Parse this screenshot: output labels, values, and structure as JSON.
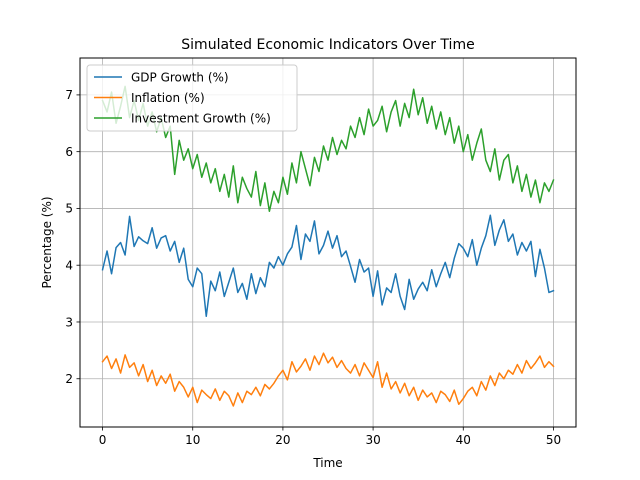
{
  "chart_data": {
    "type": "line",
    "title": "Simulated Economic Indicators Over Time",
    "xlabel": "Time",
    "ylabel": "Percentage (%)",
    "xlim": [
      -2.5,
      52.5
    ],
    "ylim": [
      1.15,
      7.65
    ],
    "xticks": [
      0,
      10,
      20,
      30,
      40,
      50
    ],
    "yticks": [
      2,
      3,
      4,
      5,
      6,
      7
    ],
    "grid": true,
    "legend_position": "top-left",
    "series": [
      {
        "name": "GDP Growth (%)",
        "color": "#1f77b4",
        "x": [
          0,
          0.5,
          1,
          1.5,
          2,
          2.5,
          3,
          3.5,
          4,
          4.5,
          5,
          5.5,
          6,
          6.5,
          7,
          7.5,
          8,
          8.5,
          9,
          9.5,
          10,
          10.5,
          11,
          11.5,
          12,
          12.5,
          13,
          13.5,
          14,
          14.5,
          15,
          15.5,
          16,
          16.5,
          17,
          17.5,
          18,
          18.5,
          19,
          19.5,
          20,
          20.5,
          21,
          21.5,
          22,
          22.5,
          23,
          23.5,
          24,
          24.5,
          25,
          25.5,
          26,
          26.5,
          27,
          27.5,
          28,
          28.5,
          29,
          29.5,
          30,
          30.5,
          31,
          31.5,
          32,
          32.5,
          33,
          33.5,
          34,
          34.5,
          35,
          35.5,
          36,
          36.5,
          37,
          37.5,
          38,
          38.5,
          39,
          39.5,
          40,
          40.5,
          41,
          41.5,
          42,
          42.5,
          43,
          43.5,
          44,
          44.5,
          45,
          45.5,
          46,
          46.5,
          47,
          47.5,
          48,
          48.5,
          49,
          49.5,
          50
        ],
        "values": [
          3.92,
          4.25,
          3.85,
          4.31,
          4.4,
          4.18,
          4.86,
          4.33,
          4.5,
          4.43,
          4.38,
          4.66,
          4.3,
          4.48,
          4.52,
          4.25,
          4.42,
          4.05,
          4.3,
          3.75,
          3.62,
          3.95,
          3.85,
          3.1,
          3.72,
          3.55,
          3.88,
          3.45,
          3.7,
          3.95,
          3.52,
          3.68,
          3.4,
          3.85,
          3.5,
          3.78,
          3.62,
          4.05,
          3.95,
          4.15,
          4.0,
          4.2,
          4.32,
          4.7,
          4.1,
          4.55,
          4.42,
          4.78,
          4.2,
          4.35,
          4.6,
          4.3,
          4.52,
          4.15,
          4.25,
          3.98,
          3.7,
          4.1,
          3.88,
          3.95,
          3.45,
          3.9,
          3.3,
          3.6,
          3.52,
          3.85,
          3.45,
          3.22,
          3.75,
          3.4,
          3.58,
          3.7,
          3.55,
          3.92,
          3.62,
          3.85,
          4.05,
          3.78,
          4.12,
          4.38,
          4.3,
          4.15,
          4.45,
          4.0,
          4.3,
          4.52,
          4.88,
          4.35,
          4.62,
          4.8,
          4.42,
          4.55,
          4.18,
          4.4,
          4.25,
          4.42,
          3.8,
          4.28,
          3.95,
          3.52,
          3.55
        ]
      },
      {
        "name": "Inflation (%)",
        "color": "#ff7f0e",
        "x": [
          0,
          0.5,
          1,
          1.5,
          2,
          2.5,
          3,
          3.5,
          4,
          4.5,
          5,
          5.5,
          6,
          6.5,
          7,
          7.5,
          8,
          8.5,
          9,
          9.5,
          10,
          10.5,
          11,
          11.5,
          12,
          12.5,
          13,
          13.5,
          14,
          14.5,
          15,
          15.5,
          16,
          16.5,
          17,
          17.5,
          18,
          18.5,
          19,
          19.5,
          20,
          20.5,
          21,
          21.5,
          22,
          22.5,
          23,
          23.5,
          24,
          24.5,
          25,
          25.5,
          26,
          26.5,
          27,
          27.5,
          28,
          28.5,
          29,
          29.5,
          30,
          30.5,
          31,
          31.5,
          32,
          32.5,
          33,
          33.5,
          34,
          34.5,
          35,
          35.5,
          36,
          36.5,
          37,
          37.5,
          38,
          38.5,
          39,
          39.5,
          40,
          40.5,
          41,
          41.5,
          42,
          42.5,
          43,
          43.5,
          44,
          44.5,
          45,
          45.5,
          46,
          46.5,
          47,
          47.5,
          48,
          48.5,
          49,
          49.5,
          50
        ],
        "values": [
          2.3,
          2.4,
          2.18,
          2.35,
          2.1,
          2.42,
          2.2,
          2.28,
          2.05,
          2.25,
          1.95,
          2.15,
          1.88,
          2.05,
          1.92,
          2.08,
          1.78,
          1.95,
          1.85,
          1.68,
          1.85,
          1.58,
          1.8,
          1.72,
          1.65,
          1.82,
          1.62,
          1.78,
          1.7,
          1.52,
          1.75,
          1.58,
          1.78,
          1.72,
          1.85,
          1.7,
          1.9,
          1.82,
          1.92,
          2.05,
          2.15,
          1.98,
          2.3,
          2.12,
          2.22,
          2.35,
          2.15,
          2.4,
          2.25,
          2.45,
          2.28,
          2.38,
          2.2,
          2.32,
          2.18,
          2.1,
          2.25,
          2.05,
          2.28,
          2.15,
          2.02,
          2.3,
          1.85,
          2.1,
          1.82,
          1.95,
          1.75,
          1.92,
          1.7,
          1.85,
          1.62,
          1.8,
          1.68,
          1.75,
          1.58,
          1.78,
          1.72,
          1.6,
          1.8,
          1.55,
          1.65,
          1.78,
          1.85,
          1.7,
          1.95,
          1.8,
          2.05,
          1.88,
          2.1,
          2.0,
          2.15,
          2.08,
          2.25,
          2.1,
          2.32,
          2.18,
          2.28,
          2.4,
          2.2,
          2.3,
          2.22
        ]
      },
      {
        "name": "Investment Growth (%)",
        "color": "#2ca02c",
        "x": [
          0,
          0.5,
          1,
          1.5,
          2,
          2.5,
          3,
          3.5,
          4,
          4.5,
          5,
          5.5,
          6,
          6.5,
          7,
          7.5,
          8,
          8.5,
          9,
          9.5,
          10,
          10.5,
          11,
          11.5,
          12,
          12.5,
          13,
          13.5,
          14,
          14.5,
          15,
          15.5,
          16,
          16.5,
          17,
          17.5,
          18,
          18.5,
          19,
          19.5,
          20,
          20.5,
          21,
          21.5,
          22,
          22.5,
          23,
          23.5,
          24,
          24.5,
          25,
          25.5,
          26,
          26.5,
          27,
          27.5,
          28,
          28.5,
          29,
          29.5,
          30,
          30.5,
          31,
          31.5,
          32,
          32.5,
          33,
          33.5,
          34,
          34.5,
          35,
          35.5,
          36,
          36.5,
          37,
          37.5,
          38,
          38.5,
          39,
          39.5,
          40,
          40.5,
          41,
          41.5,
          42,
          42.5,
          43,
          43.5,
          44,
          44.5,
          45,
          45.5,
          46,
          46.5,
          47,
          47.5,
          48,
          48.5,
          49,
          49.5,
          50
        ],
        "values": [
          6.9,
          6.7,
          7.05,
          6.5,
          6.8,
          7.15,
          6.6,
          6.9,
          6.55,
          6.85,
          6.45,
          6.7,
          6.35,
          6.6,
          6.25,
          6.45,
          5.6,
          6.2,
          5.85,
          6.05,
          5.7,
          5.95,
          5.55,
          5.8,
          5.45,
          5.7,
          5.3,
          5.6,
          5.2,
          5.75,
          5.1,
          5.55,
          5.35,
          5.2,
          5.65,
          5.05,
          5.45,
          4.95,
          5.3,
          5.1,
          5.55,
          5.25,
          5.8,
          5.45,
          6.0,
          5.7,
          5.4,
          5.9,
          5.65,
          6.1,
          5.85,
          6.25,
          5.95,
          6.2,
          6.05,
          6.45,
          6.25,
          6.6,
          6.3,
          6.75,
          6.45,
          6.55,
          6.8,
          6.35,
          6.7,
          6.9,
          6.45,
          6.85,
          6.6,
          7.1,
          6.65,
          6.95,
          6.5,
          6.8,
          6.4,
          6.7,
          6.3,
          6.6,
          6.15,
          6.45,
          6.0,
          6.3,
          5.85,
          6.15,
          6.4,
          5.85,
          5.65,
          6.05,
          5.5,
          5.85,
          5.95,
          5.45,
          5.75,
          5.3,
          5.6,
          5.2,
          5.5,
          5.1,
          5.45,
          5.3,
          5.5
        ]
      }
    ]
  }
}
